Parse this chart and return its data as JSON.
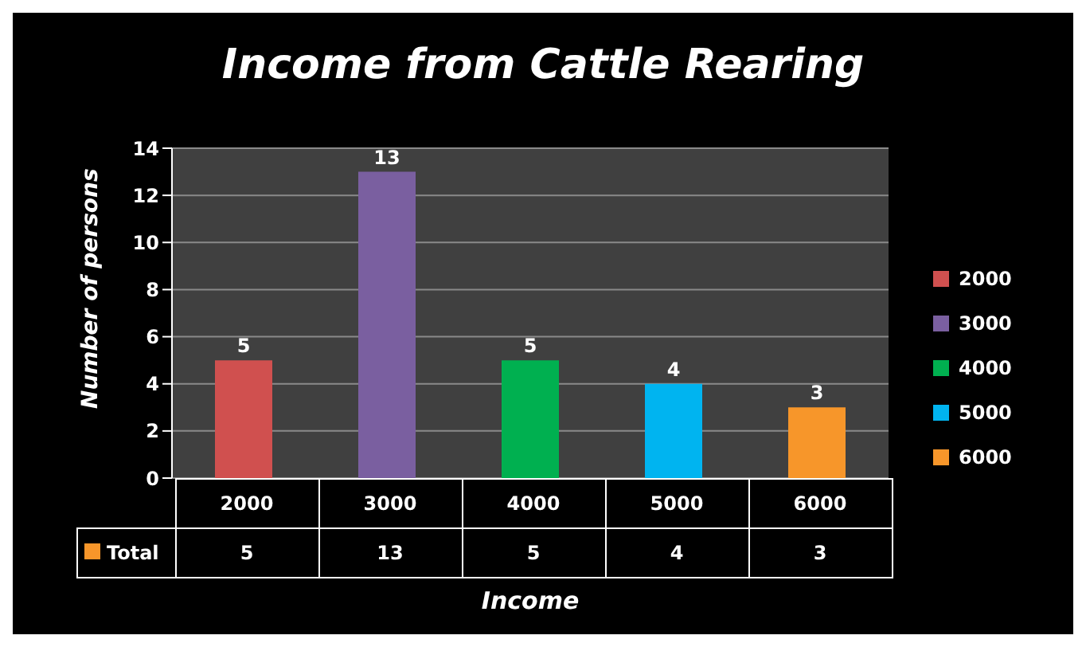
{
  "chart_data": {
    "type": "bar",
    "title": "Income from Cattle Rearing",
    "xlabel": "Income",
    "ylabel": "Number of persons",
    "categories": [
      "2000",
      "3000",
      "4000",
      "5000",
      "6000"
    ],
    "series": [
      {
        "name": "Total",
        "color": "#f7962a",
        "colors": [
          "#d0504f",
          "#7a5fa0",
          "#00b050",
          "#00b4f0",
          "#f7962a"
        ],
        "values": [
          5,
          13,
          5,
          4,
          3
        ],
        "value_labels": [
          "5",
          "13",
          "5",
          "4",
          "3"
        ]
      }
    ],
    "annotations": [
      "5",
      "13",
      "5",
      "4",
      "3"
    ],
    "ylim": [
      0,
      14
    ],
    "yticks": [
      0,
      2,
      4,
      6,
      8,
      10,
      12,
      14
    ],
    "grid": "y",
    "legend": "bottom left",
    "data_labels": true
  }
}
